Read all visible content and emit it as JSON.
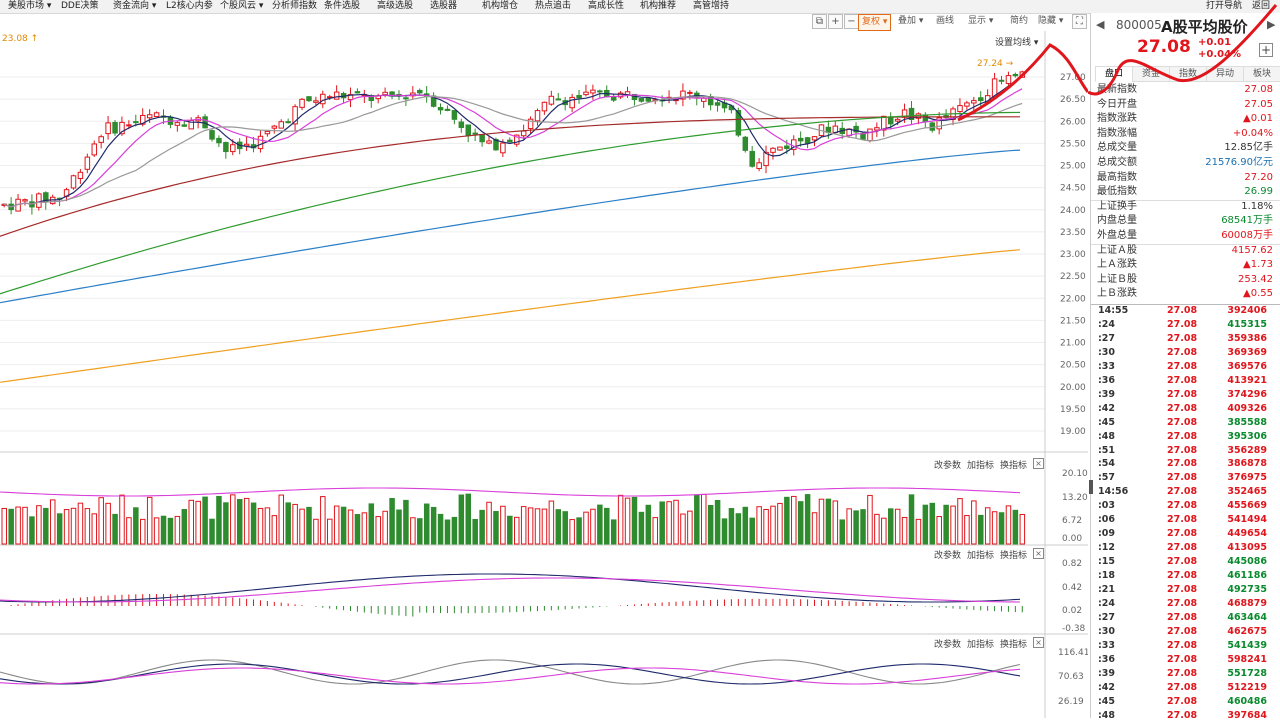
{
  "menu": [
    {
      "label": "美股市场 ▾"
    },
    {
      "label": "DDE决策"
    },
    {
      "label": "资金流向 ▾"
    },
    {
      "label": "L2核心内参"
    },
    {
      "label": "个股风云 ▾"
    },
    {
      "label": "分析师指数"
    },
    {
      "label": "条件选股"
    },
    {
      "label": "高级选股"
    },
    {
      "label": "选股器"
    },
    {
      "label": "机构增仓"
    },
    {
      "label": "热点追击"
    },
    {
      "label": "高成长性"
    },
    {
      "label": "机构推荐"
    },
    {
      "label": "高管增持"
    }
  ],
  "menu_right": {
    "nav": "打开导航",
    "back": "返回"
  },
  "toolbar": {
    "fuquan": "复权 ▾",
    "overlay": "叠加 ▾",
    "draw": "画线",
    "show": "显示 ▾",
    "simple": "简约",
    "hide": "隐藏 ▾"
  },
  "chart": {
    "max_label": "23.08 ↑",
    "high_marker": "27.24 →",
    "ma_setting": "设置均线 ▾",
    "price_axis": [
      "27.00",
      "26.50",
      "26.00",
      "25.50",
      "25.00",
      "24.50",
      "24.00",
      "23.50",
      "23.00",
      "22.50",
      "22.00",
      "21.50",
      "21.00",
      "20.50",
      "20.00",
      "19.50",
      "19.00"
    ],
    "vol_axis": [
      "20.10",
      "13.20",
      "6.72",
      "0.00"
    ],
    "macd_axis": [
      "0.82",
      "0.42",
      "0.02",
      "-0.38"
    ],
    "kdj_axis": [
      "116.41",
      "70.63",
      "26.19"
    ],
    "panel_ctrl": {
      "params": "改参数",
      "add": "加指标",
      "swap": "换指标",
      "close": "×"
    },
    "colors": {
      "up": "#e0161c",
      "down": "#2e8b2e",
      "ma5": "#1f2a6b",
      "ma10": "#d93fd9",
      "ma20": "#999999",
      "ma30": "#a52a2a",
      "ma60": "#2e9b2e",
      "ma120": "#2a7fc8",
      "ma250": "#f0a020"
    }
  },
  "quote": {
    "code": "800005",
    "name": "A股平均股价",
    "price": "27.08",
    "change": "+0.01",
    "pct": "+0.04%"
  },
  "tabs": [
    {
      "label": "盘口"
    },
    {
      "label": "资金"
    },
    {
      "label": "指数"
    },
    {
      "label": "异动"
    },
    {
      "label": "板块"
    }
  ],
  "stats": [
    {
      "k": "最新指数",
      "v": "27.08",
      "c": "red"
    },
    {
      "k": "今日开盘",
      "v": "27.05",
      "c": "red"
    },
    {
      "k": "指数涨跌",
      "v": "▲0.01",
      "c": "red"
    },
    {
      "k": "指数涨幅",
      "v": "+0.04%",
      "c": "red"
    },
    {
      "k": "总成交量",
      "v": "12.85亿手",
      "c": ""
    },
    {
      "k": "总成交额",
      "v": "21576.90亿元",
      "c": "blue"
    },
    {
      "k": "最高指数",
      "v": "27.20",
      "c": "red"
    },
    {
      "k": "最低指数",
      "v": "26.99",
      "c": "green"
    },
    {
      "k": "上证换手",
      "v": "1.18%",
      "c": ""
    },
    {
      "k": "内盘总量",
      "v": "68541万手",
      "c": "green"
    },
    {
      "k": "外盘总量",
      "v": "60008万手",
      "c": "red"
    },
    {
      "k": "上证Ａ股",
      "v": "4157.62",
      "c": "red"
    },
    {
      "k": "上Ａ涨跌",
      "v": "▲1.73",
      "c": "red"
    },
    {
      "k": "上证Ｂ股",
      "v": "253.42",
      "c": "red"
    },
    {
      "k": "上Ｂ涨跌",
      "v": "▲0.55",
      "c": "red"
    }
  ],
  "ticks": [
    {
      "t": "14:55",
      "p": "27.08",
      "v": "392406",
      "c": "red"
    },
    {
      "t": ":24",
      "p": "27.08",
      "v": "415315",
      "c": "green"
    },
    {
      "t": ":27",
      "p": "27.08",
      "v": "359386",
      "c": "red"
    },
    {
      "t": ":30",
      "p": "27.08",
      "v": "369369",
      "c": "red"
    },
    {
      "t": ":33",
      "p": "27.08",
      "v": "369576",
      "c": "red"
    },
    {
      "t": ":36",
      "p": "27.08",
      "v": "413921",
      "c": "red"
    },
    {
      "t": ":39",
      "p": "27.08",
      "v": "374296",
      "c": "red"
    },
    {
      "t": ":42",
      "p": "27.08",
      "v": "409326",
      "c": "red"
    },
    {
      "t": ":45",
      "p": "27.08",
      "v": "385588",
      "c": "green"
    },
    {
      "t": ":48",
      "p": "27.08",
      "v": "395306",
      "c": "green"
    },
    {
      "t": ":51",
      "p": "27.08",
      "v": "356289",
      "c": "red"
    },
    {
      "t": ":54",
      "p": "27.08",
      "v": "386878",
      "c": "red"
    },
    {
      "t": ":57",
      "p": "27.08",
      "v": "376975",
      "c": "red"
    },
    {
      "t": "14:56",
      "p": "27.08",
      "v": "352465",
      "c": "red"
    },
    {
      "t": ":03",
      "p": "27.08",
      "v": "455669",
      "c": "red"
    },
    {
      "t": ":06",
      "p": "27.08",
      "v": "541494",
      "c": "red"
    },
    {
      "t": ":09",
      "p": "27.08",
      "v": "449654",
      "c": "red"
    },
    {
      "t": ":12",
      "p": "27.08",
      "v": "413095",
      "c": "red"
    },
    {
      "t": ":15",
      "p": "27.08",
      "v": "445086",
      "c": "green"
    },
    {
      "t": ":18",
      "p": "27.08",
      "v": "461186",
      "c": "green"
    },
    {
      "t": ":21",
      "p": "27.08",
      "v": "492735",
      "c": "green"
    },
    {
      "t": ":24",
      "p": "27.08",
      "v": "468879",
      "c": "red"
    },
    {
      "t": ":27",
      "p": "27.08",
      "v": "463464",
      "c": "green"
    },
    {
      "t": ":30",
      "p": "27.08",
      "v": "462675",
      "c": "red"
    },
    {
      "t": ":33",
      "p": "27.08",
      "v": "541439",
      "c": "green"
    },
    {
      "t": ":36",
      "p": "27.08",
      "v": "598241",
      "c": "red"
    },
    {
      "t": ":39",
      "p": "27.08",
      "v": "551728",
      "c": "green"
    },
    {
      "t": ":42",
      "p": "27.08",
      "v": "512219",
      "c": "red"
    },
    {
      "t": ":45",
      "p": "27.08",
      "v": "460486",
      "c": "green"
    },
    {
      "t": ":48",
      "p": "27.08",
      "v": "397684",
      "c": "red"
    }
  ]
}
